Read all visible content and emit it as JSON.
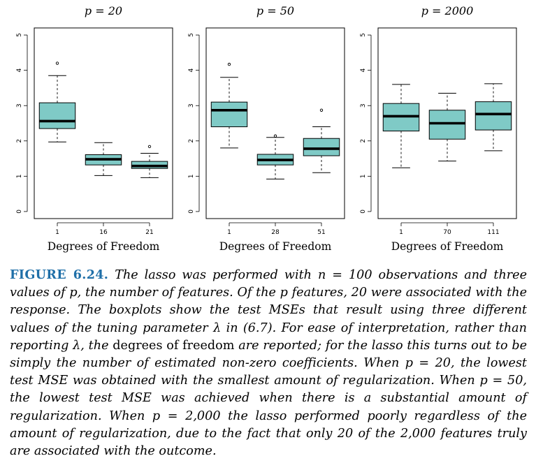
{
  "chart_data": [
    {
      "type": "boxplot",
      "title": "p = 20",
      "xlabel": "Degrees of Freedom",
      "ylabel": "",
      "ylim": [
        -0.2,
        5.2
      ],
      "yticks": [
        0,
        1,
        2,
        3,
        4,
        5
      ],
      "categories": [
        "1",
        "16",
        "21"
      ],
      "boxes": [
        {
          "whisker_low": 1.97,
          "q1": 2.35,
          "median": 2.56,
          "q3": 3.08,
          "whisker_high": 3.85,
          "outliers": [
            4.2
          ]
        },
        {
          "whisker_low": 1.02,
          "q1": 1.32,
          "median": 1.48,
          "q3": 1.61,
          "whisker_high": 1.95,
          "outliers": []
        },
        {
          "whisker_low": 0.96,
          "q1": 1.22,
          "median": 1.29,
          "q3": 1.42,
          "whisker_high": 1.65,
          "outliers": [
            1.84
          ]
        }
      ],
      "box_color": "#7fcac6"
    },
    {
      "type": "boxplot",
      "title": "p = 50",
      "xlabel": "Degrees of Freedom",
      "ylabel": "",
      "ylim": [
        -0.2,
        5.2
      ],
      "yticks": [
        0,
        1,
        2,
        3,
        4,
        5
      ],
      "categories": [
        "1",
        "28",
        "51"
      ],
      "boxes": [
        {
          "whisker_low": 1.8,
          "q1": 2.4,
          "median": 2.87,
          "q3": 3.1,
          "whisker_high": 3.8,
          "outliers": [
            4.17
          ]
        },
        {
          "whisker_low": 0.92,
          "q1": 1.32,
          "median": 1.46,
          "q3": 1.62,
          "whisker_high": 2.1,
          "outliers": [
            2.14
          ]
        },
        {
          "whisker_low": 1.1,
          "q1": 1.58,
          "median": 1.78,
          "q3": 2.07,
          "whisker_high": 2.4,
          "outliers": [
            2.87
          ]
        }
      ],
      "box_color": "#7fcac6"
    },
    {
      "type": "boxplot",
      "title": "p = 2000",
      "xlabel": "Degrees of Freedom",
      "ylabel": "",
      "ylim": [
        -0.2,
        5.2
      ],
      "yticks": [
        0,
        1,
        2,
        3,
        4,
        5
      ],
      "categories": [
        "1",
        "70",
        "111"
      ],
      "boxes": [
        {
          "whisker_low": 1.24,
          "q1": 2.28,
          "median": 2.7,
          "q3": 3.06,
          "whisker_high": 3.6,
          "outliers": []
        },
        {
          "whisker_low": 1.43,
          "q1": 2.05,
          "median": 2.5,
          "q3": 2.87,
          "whisker_high": 3.35,
          "outliers": []
        },
        {
          "whisker_low": 1.72,
          "q1": 2.31,
          "median": 2.76,
          "q3": 3.11,
          "whisker_high": 3.62,
          "outliers": []
        }
      ],
      "box_color": "#7fcac6"
    }
  ],
  "caption": {
    "label": "FIGURE 6.24.",
    "part1": "The lasso was performed with n = 100 observations and three values of p, the number of features. Of the p features, 20 were associated with the response. The boxplots show the test MSEs that result using three different values of the tuning parameter λ in (6.7). For ease of interpretation, rather than reporting λ, the",
    "upright1": "degrees of freedom",
    "part2": "are reported; for the lasso this turns out to be simply the number of estimated non-zero coefficients. When p = 20, the lowest test MSE was obtained with the smallest amount of regularization. When p = 50, the lowest test MSE was achieved when there is a substantial amount of regularization. When p = 2,000 the lasso performed poorly regardless of the amount of regularization, due to the fact that only 20 of the 2,000 features truly are associated with the outcome."
  }
}
